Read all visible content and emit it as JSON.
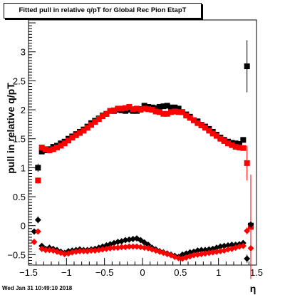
{
  "title": "Fitted pull in relative q/pT for Global Rec Pion EtapT",
  "timestamp": "Wed Jan 31 10:49:10 2018",
  "colors": {
    "series_black": "#000000",
    "series_red": "#ff0000",
    "frame": "#000000"
  },
  "chart_data": {
    "type": "scatter",
    "title": "Fitted pull in relative q/pT for Global Rec Pion EtapT",
    "xlabel": "η",
    "ylabel": "pull in relative q/pT",
    "xlim": [
      -1.5,
      1.5
    ],
    "ylim": [
      -0.68,
      3.55
    ],
    "grid": false,
    "legend": "none",
    "x_ticks": [
      "−1.5",
      "−1",
      "−0.5",
      "0",
      "0.5",
      "1",
      "1.5"
    ],
    "y_ticks": [
      "−0.5",
      "0",
      "0.5",
      "1",
      "1.5",
      "2",
      "2.5",
      "3"
    ],
    "x_tick_values": [
      -1.5,
      -1,
      -0.5,
      0,
      0.5,
      1,
      1.5
    ],
    "y_tick_values": [
      -0.5,
      0,
      0.5,
      1,
      1.5,
      2,
      2.5,
      3
    ],
    "series": [
      {
        "marker": "square",
        "color": "#000000",
        "x": [
          -1.375,
          -1.325,
          -1.275,
          -1.225,
          -1.175,
          -1.125,
          -1.075,
          -1.025,
          -0.975,
          -0.925,
          -0.875,
          -0.825,
          -0.775,
          -0.725,
          -0.675,
          -0.625,
          -0.575,
          -0.525,
          -0.475,
          -0.425,
          -0.375,
          -0.325,
          -0.275,
          -0.225,
          -0.175,
          -0.125,
          -0.075,
          -0.025,
          0.025,
          0.075,
          0.125,
          0.175,
          0.225,
          0.275,
          0.325,
          0.375,
          0.425,
          0.475,
          0.525,
          0.575,
          0.625,
          0.675,
          0.725,
          0.775,
          0.825,
          0.875,
          0.925,
          0.975,
          1.025,
          1.075,
          1.125,
          1.175,
          1.225,
          1.275,
          1.325,
          1.375,
          1.425
        ],
        "y": [
          1.0,
          1.28,
          1.3,
          1.32,
          1.36,
          1.38,
          1.42,
          1.45,
          1.5,
          1.54,
          1.58,
          1.62,
          1.66,
          1.71,
          1.77,
          1.81,
          1.85,
          1.9,
          1.93,
          1.98,
          1.98,
          2.0,
          1.99,
          1.98,
          2.0,
          1.98,
          1.98,
          2.01,
          2.07,
          2.05,
          2.04,
          2.03,
          2.05,
          2.06,
          2.07,
          2.04,
          2.04,
          2.02,
          1.96,
          1.92,
          1.88,
          1.82,
          1.8,
          1.74,
          1.71,
          1.67,
          1.62,
          1.57,
          1.52,
          1.48,
          1.45,
          1.43,
          1.42,
          1.41,
          1.48,
          2.75,
          0.0
        ],
        "yerr": [
          0.07,
          0.03,
          0.02,
          0.02,
          0.02,
          0.02,
          0.02,
          0.02,
          0.02,
          0.02,
          0.02,
          0.02,
          0.02,
          0.02,
          0.02,
          0.02,
          0.02,
          0.02,
          0.02,
          0.02,
          0.02,
          0.02,
          0.02,
          0.02,
          0.02,
          0.02,
          0.02,
          0.02,
          0.02,
          0.02,
          0.02,
          0.02,
          0.02,
          0.02,
          0.02,
          0.02,
          0.02,
          0.02,
          0.02,
          0.02,
          0.02,
          0.02,
          0.02,
          0.02,
          0.02,
          0.02,
          0.02,
          0.02,
          0.02,
          0.02,
          0.02,
          0.02,
          0.02,
          0.02,
          0.03,
          0.45,
          0.0
        ]
      },
      {
        "marker": "square",
        "color": "#ff0000",
        "x": [
          -1.375,
          -1.325,
          -1.275,
          -1.225,
          -1.175,
          -1.125,
          -1.075,
          -1.025,
          -0.975,
          -0.925,
          -0.875,
          -0.825,
          -0.775,
          -0.725,
          -0.675,
          -0.625,
          -0.575,
          -0.525,
          -0.475,
          -0.425,
          -0.375,
          -0.325,
          -0.275,
          -0.225,
          -0.175,
          -0.125,
          -0.075,
          -0.025,
          0.025,
          0.075,
          0.125,
          0.175,
          0.225,
          0.275,
          0.325,
          0.375,
          0.425,
          0.475,
          0.525,
          0.575,
          0.625,
          0.675,
          0.725,
          0.775,
          0.825,
          0.875,
          0.925,
          0.975,
          1.025,
          1.075,
          1.125,
          1.175,
          1.225,
          1.275,
          1.325,
          1.375,
          1.425
        ],
        "y": [
          0.78,
          1.35,
          1.32,
          1.3,
          1.32,
          1.35,
          1.38,
          1.42,
          1.47,
          1.52,
          1.56,
          1.6,
          1.64,
          1.69,
          1.74,
          1.79,
          1.84,
          1.89,
          1.93,
          1.98,
          1.99,
          2.02,
          2.02,
          2.03,
          2.05,
          2.01,
          2.02,
          2.0,
          2.02,
          2.01,
          2.0,
          1.97,
          1.96,
          1.93,
          1.93,
          1.96,
          1.97,
          1.96,
          1.96,
          1.9,
          1.86,
          1.82,
          1.77,
          1.73,
          1.69,
          1.64,
          1.59,
          1.55,
          1.5,
          1.46,
          1.42,
          1.39,
          1.36,
          1.35,
          1.34,
          1.08,
          -0.02
        ],
        "yerr": [
          0.05,
          0.03,
          0.02,
          0.02,
          0.02,
          0.02,
          0.02,
          0.02,
          0.02,
          0.02,
          0.02,
          0.02,
          0.02,
          0.02,
          0.02,
          0.02,
          0.02,
          0.02,
          0.02,
          0.02,
          0.02,
          0.02,
          0.02,
          0.02,
          0.02,
          0.02,
          0.02,
          0.02,
          0.02,
          0.02,
          0.02,
          0.02,
          0.02,
          0.02,
          0.02,
          0.02,
          0.02,
          0.02,
          0.02,
          0.02,
          0.02,
          0.02,
          0.02,
          0.02,
          0.02,
          0.02,
          0.02,
          0.02,
          0.02,
          0.02,
          0.02,
          0.02,
          0.02,
          0.02,
          0.03,
          0.3,
          0.9
        ]
      },
      {
        "marker": "diamond",
        "color": "#000000",
        "x": [
          -1.425,
          -1.375,
          -1.325,
          -1.275,
          -1.225,
          -1.175,
          -1.125,
          -1.075,
          -1.025,
          -0.975,
          -0.925,
          -0.875,
          -0.825,
          -0.775,
          -0.725,
          -0.675,
          -0.625,
          -0.575,
          -0.525,
          -0.475,
          -0.425,
          -0.375,
          -0.325,
          -0.275,
          -0.225,
          -0.175,
          -0.125,
          -0.075,
          -0.025,
          0.025,
          0.075,
          0.125,
          0.175,
          0.225,
          0.275,
          0.325,
          0.375,
          0.425,
          0.475,
          0.525,
          0.575,
          0.625,
          0.675,
          0.725,
          0.775,
          0.825,
          0.875,
          0.925,
          0.975,
          1.025,
          1.075,
          1.125,
          1.175,
          1.225,
          1.275,
          1.325,
          1.375,
          1.425
        ],
        "y": [
          -0.1,
          0.1,
          -0.35,
          -0.4,
          -0.38,
          -0.4,
          -0.42,
          -0.45,
          -0.47,
          -0.44,
          -0.43,
          -0.42,
          -0.41,
          -0.42,
          -0.42,
          -0.41,
          -0.4,
          -0.38,
          -0.36,
          -0.34,
          -0.32,
          -0.3,
          -0.28,
          -0.27,
          -0.25,
          -0.24,
          -0.23,
          -0.22,
          -0.25,
          -0.29,
          -0.33,
          -0.38,
          -0.41,
          -0.44,
          -0.46,
          -0.48,
          -0.5,
          -0.52,
          -0.54,
          -0.5,
          -0.48,
          -0.46,
          -0.45,
          -0.43,
          -0.42,
          -0.42,
          -0.41,
          -0.4,
          -0.38,
          -0.36,
          -0.35,
          -0.34,
          -0.33,
          -0.33,
          -0.32,
          -0.3,
          -0.57,
          0.02
        ],
        "yerr": [
          0.02,
          0.06,
          0.02,
          0.02,
          0.02,
          0.02,
          0.02,
          0.02,
          0.02,
          0.02,
          0.02,
          0.02,
          0.02,
          0.02,
          0.02,
          0.02,
          0.02,
          0.02,
          0.02,
          0.02,
          0.02,
          0.02,
          0.02,
          0.02,
          0.02,
          0.02,
          0.02,
          0.02,
          0.02,
          0.02,
          0.02,
          0.02,
          0.02,
          0.02,
          0.02,
          0.02,
          0.02,
          0.02,
          0.02,
          0.02,
          0.02,
          0.02,
          0.02,
          0.02,
          0.02,
          0.02,
          0.02,
          0.02,
          0.02,
          0.02,
          0.02,
          0.02,
          0.02,
          0.02,
          0.02,
          0.02,
          0.07,
          0.05
        ]
      },
      {
        "marker": "diamond",
        "color": "#ff0000",
        "x": [
          -1.425,
          -1.375,
          -1.325,
          -1.275,
          -1.225,
          -1.175,
          -1.125,
          -1.075,
          -1.025,
          -0.975,
          -0.925,
          -0.875,
          -0.825,
          -0.775,
          -0.725,
          -0.675,
          -0.625,
          -0.575,
          -0.525,
          -0.475,
          -0.425,
          -0.375,
          -0.325,
          -0.275,
          -0.225,
          -0.175,
          -0.125,
          -0.075,
          -0.025,
          0.025,
          0.075,
          0.125,
          0.175,
          0.225,
          0.275,
          0.325,
          0.375,
          0.425,
          0.475,
          0.525,
          0.575,
          0.625,
          0.675,
          0.725,
          0.775,
          0.825,
          0.875,
          0.925,
          0.975,
          1.025,
          1.075,
          1.125,
          1.175,
          1.225,
          1.275,
          1.325,
          1.375,
          1.425
        ],
        "y": [
          -0.28,
          -0.1,
          -0.4,
          -0.42,
          -0.42,
          -0.43,
          -0.45,
          -0.47,
          -0.49,
          -0.48,
          -0.46,
          -0.45,
          -0.44,
          -0.44,
          -0.44,
          -0.43,
          -0.43,
          -0.42,
          -0.41,
          -0.4,
          -0.39,
          -0.38,
          -0.38,
          -0.37,
          -0.37,
          -0.36,
          -0.36,
          -0.36,
          -0.37,
          -0.38,
          -0.39,
          -0.41,
          -0.43,
          -0.45,
          -0.47,
          -0.49,
          -0.51,
          -0.54,
          -0.56,
          -0.57,
          -0.55,
          -0.53,
          -0.51,
          -0.5,
          -0.49,
          -0.48,
          -0.47,
          -0.46,
          -0.45,
          -0.44,
          -0.43,
          -0.41,
          -0.4,
          -0.38,
          -0.36,
          -0.35,
          -0.09,
          -0.39
        ],
        "yerr": [
          0.02,
          0.04,
          0.02,
          0.02,
          0.02,
          0.02,
          0.02,
          0.02,
          0.02,
          0.02,
          0.02,
          0.02,
          0.02,
          0.02,
          0.02,
          0.02,
          0.02,
          0.02,
          0.02,
          0.02,
          0.02,
          0.02,
          0.02,
          0.02,
          0.02,
          0.02,
          0.02,
          0.02,
          0.02,
          0.02,
          0.02,
          0.02,
          0.02,
          0.02,
          0.02,
          0.02,
          0.02,
          0.02,
          0.02,
          0.02,
          0.02,
          0.02,
          0.02,
          0.02,
          0.02,
          0.02,
          0.02,
          0.02,
          0.02,
          0.02,
          0.02,
          0.02,
          0.02,
          0.02,
          0.02,
          0.02,
          0.06,
          0.05
        ]
      }
    ]
  }
}
